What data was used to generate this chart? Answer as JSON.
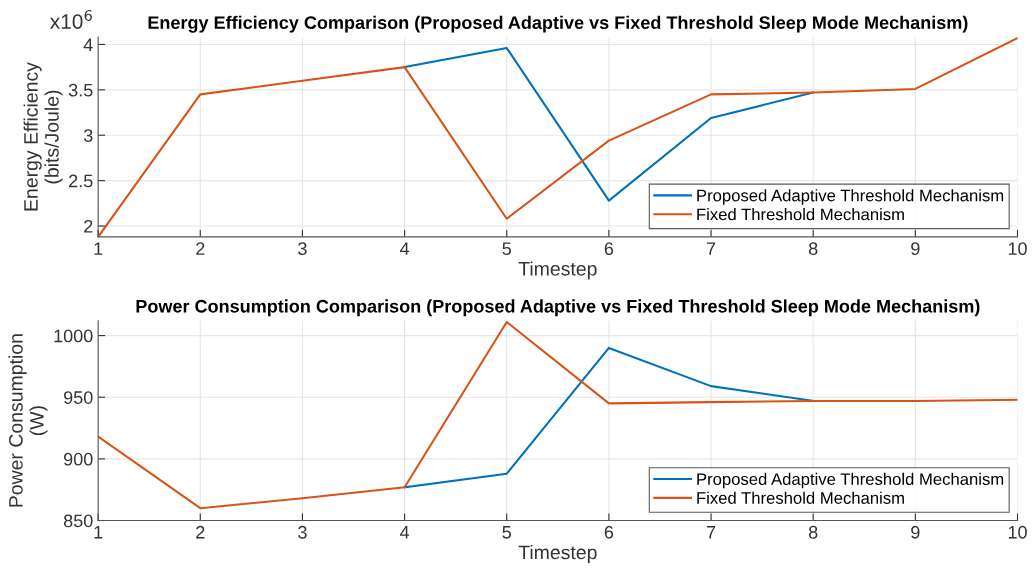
{
  "chart_data": [
    {
      "type": "line",
      "title": "Energy Efficiency Comparison (Proposed Adaptive vs Fixed Threshold Sleep Mode Mechanism)",
      "xlabel": "Timestep",
      "ylabel": "Energy Efficiency\n(bits/Joule)",
      "annotations": [
        "x10$^{6}$"
      ],
      "x": [
        1,
        2,
        3,
        4,
        5,
        6,
        7,
        8,
        9,
        10
      ],
      "series": [
        {
          "name": "Proposed Adaptive Threshold Mechanism",
          "color": "#0072bd",
          "values": [
            null,
            null,
            null,
            3.75,
            3.96,
            2.28,
            3.19,
            3.47,
            null,
            null
          ]
        },
        {
          "name": "Fixed Threshold Mechanism",
          "color": "#d95319",
          "values": [
            1.88,
            3.45,
            3.6,
            3.75,
            2.08,
            2.94,
            3.45,
            3.47,
            3.51,
            4.07
          ]
        }
      ],
      "xlim": [
        1,
        10
      ],
      "xticks": [
        1,
        2,
        3,
        4,
        5,
        6,
        7,
        8,
        9,
        10
      ],
      "ylim": [
        1.88,
        4.08
      ],
      "yticks": [
        2,
        2.5,
        3,
        3.5,
        4
      ],
      "grid": true,
      "legend": "bottom right"
    },
    {
      "type": "line",
      "title": "Power Consumption Comparison (Proposed Adaptive vs Fixed Threshold Sleep Mode Mechanism)",
      "xlabel": "Timestep",
      "ylabel": "Power Consumption\n(W)",
      "x": [
        1,
        2,
        3,
        4,
        5,
        6,
        7,
        8,
        9,
        10
      ],
      "series": [
        {
          "name": "Proposed Adaptive Threshold Mechanism",
          "color": "#0072bd",
          "values": [
            null,
            null,
            null,
            877,
            888,
            990,
            959,
            947,
            null,
            null
          ]
        },
        {
          "name": "Fixed Threshold Mechanism",
          "color": "#d95319",
          "values": [
            918,
            860,
            868,
            877,
            1011,
            945,
            946,
            947,
            947,
            948
          ]
        }
      ],
      "xlim": [
        1,
        10
      ],
      "xticks": [
        1,
        2,
        3,
        4,
        5,
        6,
        7,
        8,
        9,
        10
      ],
      "ylim": [
        850,
        1012
      ],
      "yticks": [
        850,
        900,
        950,
        1000
      ],
      "grid": true,
      "legend": "bottom right"
    }
  ]
}
